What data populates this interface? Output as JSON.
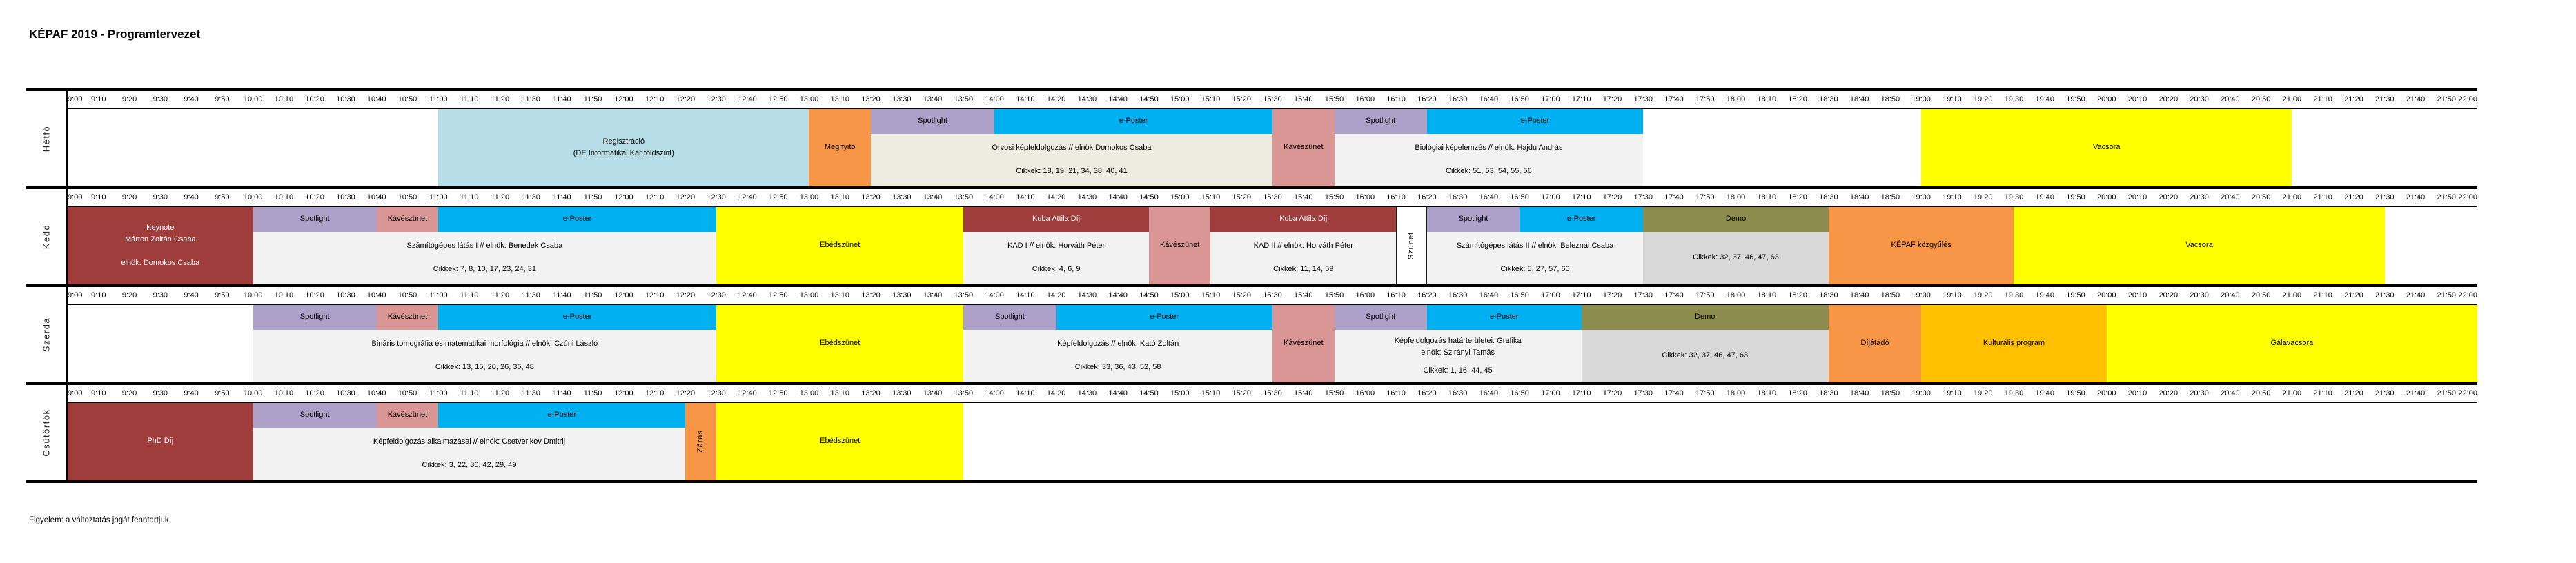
{
  "footer": "Figyelem: a változtatás jogát fenntartjuk.",
  "colors": {
    "maroon": "#9E3D3B",
    "rose": "#D99694",
    "purple": "#AEA1C9",
    "cyan": "#00B0F0",
    "orange": "#F79646",
    "yellow": "#FFFF00",
    "amber": "#FFC000",
    "olive": "#8C8C4E",
    "lightblue": "#B7DEE8",
    "beige": "#EEECE1",
    "lightgray": "#F2F2F2",
    "midgray": "#D9D9D9",
    "white": "#FFFFFF"
  },
  "chart_data": {
    "type": "table",
    "title": "KÉPAF 2019 - Programtervezet",
    "x_axis": {
      "start": "9:00",
      "end": "22:00",
      "ticks": [
        "9:00",
        "9:10",
        "9:20",
        "9:30",
        "9:40",
        "9:50",
        "10:00",
        "10:10",
        "10:20",
        "10:30",
        "10:40",
        "10:50",
        "11:00",
        "11:10",
        "11:20",
        "11:30",
        "11:40",
        "11:50",
        "12:00",
        "12:10",
        "12:20",
        "12:30",
        "12:40",
        "12:50",
        "13:00",
        "13:10",
        "13:20",
        "13:30",
        "13:40",
        "13:50",
        "14:00",
        "14:10",
        "14:20",
        "14:30",
        "14:40",
        "14:50",
        "15:00",
        "15:10",
        "15:20",
        "15:30",
        "15:40",
        "15:50",
        "16:00",
        "16:10",
        "16:20",
        "16:30",
        "16:40",
        "16:50",
        "17:00",
        "17:10",
        "17:20",
        "17:30",
        "17:40",
        "17:50",
        "18:00",
        "18:10",
        "18:20",
        "18:30",
        "18:40",
        "18:50",
        "19:00",
        "19:10",
        "19:20",
        "19:30",
        "19:40",
        "19:50",
        "20:00",
        "20:10",
        "20:20",
        "20:30",
        "20:40",
        "20:50",
        "21:00",
        "21:10",
        "21:20",
        "21:30",
        "21:40",
        "21:50",
        "22:00"
      ]
    },
    "days": [
      {
        "id": "hetfo",
        "name": "Hétfő",
        "events": [
          {
            "name": "event-regisztracio",
            "band": "full",
            "color": "lightblue",
            "start": "11:00",
            "end": "13:00",
            "lines": [
              "Regisztráció",
              "(DE Informatikai Kar földszint)"
            ]
          },
          {
            "name": "event-megnyito",
            "band": "full",
            "color": "orange",
            "start": "13:00",
            "end": "13:20",
            "lines": [
              "Megnyitó"
            ]
          },
          {
            "name": "event-spotlight",
            "band": "top",
            "color": "purple",
            "start": "13:20",
            "end": "14:00",
            "lines": [
              "Spotlight"
            ]
          },
          {
            "name": "event-eposter",
            "band": "top",
            "color": "cyan",
            "start": "14:00",
            "end": "15:30",
            "lines": [
              "e-Poster"
            ]
          },
          {
            "name": "session-orvosi-kepfeldolgozas",
            "band": "bottom",
            "color": "beige",
            "start": "13:20",
            "end": "15:30",
            "lines": [
              "Orvosi képfeldolgozás // elnök:Domokos Csaba"
            ],
            "cikkek": "Cikkek: 18, 19, 21, 34, 38, 40, 41"
          },
          {
            "name": "event-kaveszunet",
            "band": "full",
            "color": "rose",
            "start": "15:30",
            "end": "15:50",
            "lines": [
              "Kávészünet"
            ]
          },
          {
            "name": "event-spotlight",
            "band": "top",
            "color": "purple",
            "start": "15:50",
            "end": "16:20",
            "lines": [
              "Spotlight"
            ]
          },
          {
            "name": "event-eposter",
            "band": "top",
            "color": "cyan",
            "start": "16:20",
            "end": "17:30",
            "lines": [
              "e-Poster"
            ]
          },
          {
            "name": "session-biologiai-kepelemzes",
            "band": "bottom",
            "color": "lightgray",
            "start": "15:50",
            "end": "17:30",
            "lines": [
              "Biológiai képelemzés // elnök: Hajdu András"
            ],
            "cikkek": "Cikkek: 51, 53, 54, 55, 56"
          },
          {
            "name": "event-vacsora",
            "band": "full",
            "color": "yellow",
            "start": "19:00",
            "end": "21:00",
            "lines": [
              "Vacsora"
            ]
          }
        ]
      },
      {
        "id": "kedd",
        "name": "Kedd",
        "events": [
          {
            "name": "event-keynote",
            "band": "full",
            "color": "maroon",
            "text": "white",
            "start": "9:00",
            "end": "10:00",
            "lines": [
              "Keynote",
              "Márton Zoltán Csaba",
              "",
              "elnök: Domokos Csaba"
            ]
          },
          {
            "name": "event-spotlight",
            "band": "top",
            "color": "purple",
            "start": "10:00",
            "end": "10:40",
            "lines": [
              "Spotlight"
            ]
          },
          {
            "name": "event-kaveszunet",
            "band": "top",
            "color": "rose",
            "start": "10:40",
            "end": "11:00",
            "lines": [
              "Kávészünet"
            ]
          },
          {
            "name": "event-eposter",
            "band": "top",
            "color": "cyan",
            "start": "11:00",
            "end": "12:30",
            "lines": [
              "e-Poster"
            ]
          },
          {
            "name": "session-szamitogepes-latas-1",
            "band": "bottom",
            "color": "lightgray",
            "start": "10:00",
            "end": "12:30",
            "lines": [
              "Számítógépes látás I // elnök: Benedek Csaba"
            ],
            "cikkek": "Cikkek: 7, 8, 10, 17, 23, 24, 31"
          },
          {
            "name": "event-ebedszunet",
            "band": "full",
            "color": "yellow",
            "start": "12:30",
            "end": "13:50",
            "lines": [
              "Ebédszünet"
            ]
          },
          {
            "name": "event-kuba-attila-dij",
            "band": "top",
            "color": "maroon",
            "text": "white",
            "start": "13:50",
            "end": "14:50",
            "lines": [
              "Kuba Attila Díj"
            ]
          },
          {
            "name": "session-kad-1",
            "band": "bottom",
            "color": "lightgray",
            "start": "13:50",
            "end": "14:50",
            "lines": [
              "KAD I // elnök: Horváth Péter"
            ],
            "cikkek": "Cikkek: 4, 6, 9"
          },
          {
            "name": "event-kaveszunet",
            "band": "full",
            "color": "rose",
            "start": "14:50",
            "end": "15:10",
            "lines": [
              "Kávészünet"
            ]
          },
          {
            "name": "event-kuba-attila-dij",
            "band": "top",
            "color": "maroon",
            "text": "white",
            "start": "15:10",
            "end": "16:10",
            "lines": [
              "Kuba Attila Díj"
            ]
          },
          {
            "name": "session-kad-2",
            "band": "bottom",
            "color": "lightgray",
            "start": "15:10",
            "end": "16:10",
            "lines": [
              "KAD II // elnök: Horváth Péter"
            ],
            "cikkek": "Cikkek: 11, 14, 59"
          },
          {
            "name": "event-szunet",
            "band": "full",
            "color": "white",
            "start": "16:10",
            "end": "16:20",
            "lines": [
              "Szünet"
            ],
            "vertical": true,
            "border": true
          },
          {
            "name": "event-spotlight",
            "band": "top",
            "color": "purple",
            "start": "16:20",
            "end": "16:50",
            "lines": [
              "Spotlight"
            ]
          },
          {
            "name": "event-eposter",
            "band": "top",
            "color": "cyan",
            "start": "16:50",
            "end": "17:30",
            "lines": [
              "e-Poster"
            ]
          },
          {
            "name": "session-szamitogepes-latas-2",
            "band": "bottom",
            "color": "lightgray",
            "start": "16:20",
            "end": "17:30",
            "lines": [
              "Számítógépes látás II // elnök: Beleznai Csaba"
            ],
            "cikkek": "Cikkek: 5, 27, 57, 60"
          },
          {
            "name": "event-demo",
            "band": "top",
            "color": "olive",
            "start": "17:30",
            "end": "18:30",
            "lines": [
              "Demo"
            ]
          },
          {
            "name": "session-demo",
            "band": "bottom",
            "color": "midgray",
            "start": "17:30",
            "end": "18:30",
            "lines": [],
            "cikkek": "Cikkek: 32, 37, 46, 47, 63"
          },
          {
            "name": "event-kepaf-kozgyules",
            "band": "full",
            "color": "orange",
            "start": "18:30",
            "end": "19:30",
            "lines": [
              "KÉPAF közgyűlés"
            ]
          },
          {
            "name": "event-vacsora",
            "band": "full",
            "color": "yellow",
            "start": "19:30",
            "end": "21:30",
            "lines": [
              "Vacsora"
            ]
          }
        ]
      },
      {
        "id": "szerda",
        "name": "Szerda",
        "events": [
          {
            "name": "event-spotlight",
            "band": "top",
            "color": "purple",
            "start": "10:00",
            "end": "10:40",
            "lines": [
              "Spotlight"
            ]
          },
          {
            "name": "event-kaveszunet",
            "band": "top",
            "color": "rose",
            "start": "10:40",
            "end": "11:00",
            "lines": [
              "Kávészünet"
            ]
          },
          {
            "name": "event-eposter",
            "band": "top",
            "color": "cyan",
            "start": "11:00",
            "end": "12:30",
            "lines": [
              "e-Poster"
            ]
          },
          {
            "name": "session-binaris-tomografia",
            "band": "bottom",
            "color": "lightgray",
            "start": "10:00",
            "end": "12:30",
            "lines": [
              "Bináris tomográfia és matematikai morfológia // elnök: Czúni László"
            ],
            "cikkek": "Cikkek: 13, 15, 20, 26, 35, 48"
          },
          {
            "name": "event-ebedszunet",
            "band": "full",
            "color": "yellow",
            "start": "12:30",
            "end": "13:50",
            "lines": [
              "Ebédszünet"
            ]
          },
          {
            "name": "event-spotlight",
            "band": "top",
            "color": "purple",
            "start": "13:50",
            "end": "14:20",
            "lines": [
              "Spotlight"
            ]
          },
          {
            "name": "event-eposter",
            "band": "top",
            "color": "cyan",
            "start": "14:20",
            "end": "15:30",
            "lines": [
              "e-Poster"
            ]
          },
          {
            "name": "session-kepfeldolgozas",
            "band": "bottom",
            "color": "lightgray",
            "start": "13:50",
            "end": "15:30",
            "lines": [
              "Képfeldolgozás // elnök: Kató Zoltán"
            ],
            "cikkek": "Cikkek: 33, 36, 43, 52, 58"
          },
          {
            "name": "event-kaveszunet",
            "band": "full",
            "color": "rose",
            "start": "15:30",
            "end": "15:50",
            "lines": [
              "Kávészünet"
            ]
          },
          {
            "name": "event-spotlight",
            "band": "top",
            "color": "purple",
            "start": "15:50",
            "end": "16:20",
            "lines": [
              "Spotlight"
            ]
          },
          {
            "name": "event-eposter",
            "band": "top",
            "color": "cyan",
            "start": "16:20",
            "end": "17:10",
            "lines": [
              "e-Poster"
            ]
          },
          {
            "name": "session-hatarteruletek-grafika",
            "band": "bottom",
            "color": "lightgray",
            "start": "15:50",
            "end": "17:10",
            "lines": [
              "Képfeldolgozás határterületei: Grafika",
              "elnök: Szirányi Tamás"
            ],
            "cikkek": "Cikkek: 1, 16, 44, 45"
          },
          {
            "name": "event-demo",
            "band": "top",
            "color": "olive",
            "start": "17:10",
            "end": "18:30",
            "lines": [
              "Demo"
            ]
          },
          {
            "name": "session-demo",
            "band": "bottom",
            "color": "midgray",
            "start": "17:10",
            "end": "18:30",
            "lines": [],
            "cikkek": "Cikkek: 32, 37, 46, 47, 63"
          },
          {
            "name": "event-dijatado",
            "band": "full",
            "color": "orange",
            "start": "18:30",
            "end": "19:00",
            "lines": [
              "Díjátadó"
            ]
          },
          {
            "name": "event-kulturalis-program",
            "band": "full",
            "color": "amber",
            "start": "19:00",
            "end": "20:00",
            "lines": [
              "Kulturális program"
            ]
          },
          {
            "name": "event-galavacsora",
            "band": "full",
            "color": "yellow",
            "start": "20:00",
            "end": "22:00",
            "lines": [
              "Gálavacsora"
            ]
          }
        ]
      },
      {
        "id": "csutortok",
        "name": "Csütörtök",
        "events": [
          {
            "name": "event-phd-dij",
            "band": "full",
            "color": "maroon",
            "text": "white",
            "start": "9:00",
            "end": "10:00",
            "lines": [
              "PhD Díj"
            ]
          },
          {
            "name": "event-spotlight",
            "band": "top",
            "color": "purple",
            "start": "10:00",
            "end": "10:40",
            "lines": [
              "Spotlight"
            ]
          },
          {
            "name": "event-kaveszunet",
            "band": "top",
            "color": "rose",
            "start": "10:40",
            "end": "11:00",
            "lines": [
              "Kávészünet"
            ]
          },
          {
            "name": "event-eposter",
            "band": "top",
            "color": "cyan",
            "start": "11:00",
            "end": "12:20",
            "lines": [
              "e-Poster"
            ]
          },
          {
            "name": "session-kepfeldolgozas-alkalmazasai",
            "band": "bottom",
            "color": "lightgray",
            "start": "10:00",
            "end": "12:20",
            "lines": [
              "Képfeldolgozás alkalmazásai // elnök: Csetverikov Dmitrij"
            ],
            "cikkek": "Cikkek: 3, 22, 30, 42, 29, 49"
          },
          {
            "name": "event-zaras",
            "band": "full",
            "color": "orange",
            "start": "12:20",
            "end": "12:30",
            "lines": [
              "Zárás"
            ],
            "vertical": true
          },
          {
            "name": "event-ebedszunet",
            "band": "full",
            "color": "yellow",
            "start": "12:30",
            "end": "13:50",
            "lines": [
              "Ebédszünet"
            ]
          }
        ]
      }
    ]
  }
}
